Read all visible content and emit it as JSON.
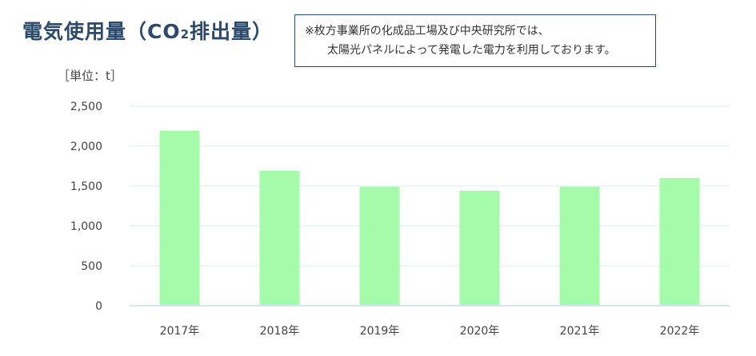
{
  "title": {
    "main": "電気使用量（CO",
    "sub": "2",
    "tail": "排出量）"
  },
  "note": {
    "line1": "※枚方事業所の化成品工場及び中央研究所では、",
    "line2": "太陽光パネルによって発電した電力を利用しております。"
  },
  "colors": {
    "bar": "#a6fbab",
    "title": "#2d4a6a",
    "grid": "#d8eef0"
  },
  "chart_data": {
    "type": "bar",
    "categories": [
      "2017年",
      "2018年",
      "2019年",
      "2020年",
      "2021年",
      "2022年"
    ],
    "values": [
      2190,
      1690,
      1490,
      1440,
      1490,
      1600
    ],
    "ylabel": "［単位：t］",
    "ylim": [
      0,
      2500
    ],
    "yticks": [
      0,
      500,
      1000,
      1500,
      2000,
      2500
    ],
    "ytick_labels": [
      "0",
      "500",
      "1,000",
      "1,500",
      "2,000",
      "2,500"
    ],
    "grid": true
  }
}
